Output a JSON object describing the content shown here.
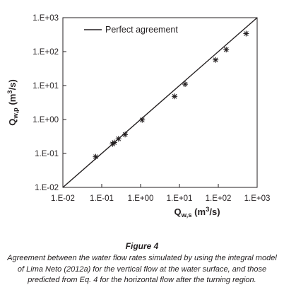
{
  "chart_data": {
    "type": "scatter",
    "x_scale": "log",
    "y_scale": "log",
    "xlim": [
      0.01,
      1000
    ],
    "ylim": [
      0.01,
      1000
    ],
    "xticks": [
      "1.E-02",
      "1.E-01",
      "1.E+00",
      "1.E+01",
      "1.E+02",
      "1.E+03"
    ],
    "yticks": [
      "1.E-02",
      "1.E-01",
      "1.E+00",
      "1.E+01",
      "1.E+02",
      "1.E+03"
    ],
    "xlabel": {
      "base": "Q",
      "sub": "w,s",
      "unit_pre": " (m",
      "sup": "3",
      "unit_post": "/s)"
    },
    "ylabel": {
      "base": "Q",
      "sub": "w,p",
      "unit_pre": " (m",
      "sup": "3",
      "unit_post": "/s)"
    },
    "legend": {
      "label": "Perfect agreement",
      "position": "top-left"
    },
    "grid": false,
    "points": [
      {
        "x": 0.07,
        "y": 0.08
      },
      {
        "x": 0.19,
        "y": 0.19
      },
      {
        "x": 0.21,
        "y": 0.21
      },
      {
        "x": 0.27,
        "y": 0.27
      },
      {
        "x": 0.4,
        "y": 0.36
      },
      {
        "x": 1.1,
        "y": 0.97
      },
      {
        "x": 7.5,
        "y": 4.8
      },
      {
        "x": 14,
        "y": 11
      },
      {
        "x": 85,
        "y": 57
      },
      {
        "x": 160,
        "y": 115
      },
      {
        "x": 520,
        "y": 340
      }
    ],
    "lines": [
      {
        "name": "Perfect agreement",
        "x": [
          0.01,
          1000
        ],
        "y": [
          0.01,
          1000
        ]
      }
    ]
  },
  "figure": {
    "title": "Figure 4",
    "caption": "Agreement between the water flow rates simulated by using the integral model of Lima Neto (2012a) for the vertical flow at the water surface, and those predicted from Eq. 4 for the horizontal flow after the turning region."
  }
}
